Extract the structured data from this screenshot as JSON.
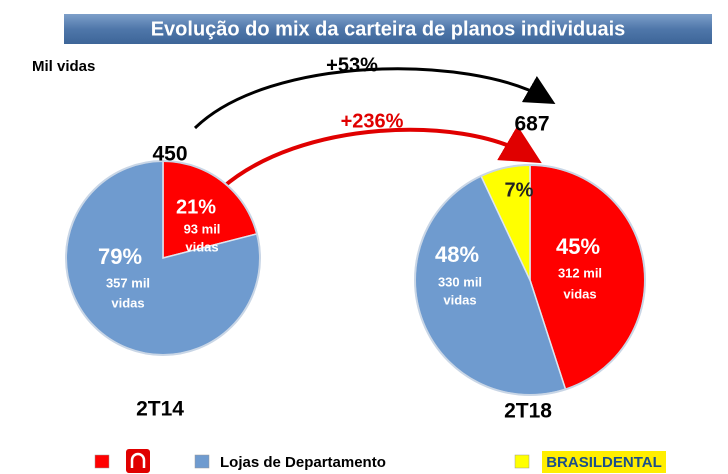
{
  "title": "Evolução do mix da carteira de planos individuais",
  "unit_label": "Mil vidas",
  "annotations": [
    "+53%",
    "+236%"
  ],
  "legend": [
    {
      "name": null,
      "color": "#ff0000"
    },
    {
      "name": "Lojas de Departamento",
      "color": "#6f9bcf"
    },
    {
      "name": "BRASILDENTAL",
      "color": "#ffff00"
    }
  ],
  "chart_data": [
    {
      "type": "pie",
      "title": "2T14",
      "total": 450,
      "categories": [
        null,
        "Lojas de Departamento"
      ],
      "values": [
        21,
        79
      ],
      "value_labels": [
        "21%",
        "79%"
      ],
      "details": [
        [
          "93 mil",
          "vidas"
        ],
        [
          "357 mil",
          "vidas"
        ]
      ],
      "colors": [
        "#ff0000",
        "#6f9bcf"
      ]
    },
    {
      "type": "pie",
      "title": "2T18",
      "total": 687,
      "categories": [
        null,
        "Lojas de Departamento",
        "BRASILDENTAL"
      ],
      "values": [
        45,
        48,
        7
      ],
      "value_labels": [
        "45%",
        "48%",
        "7%"
      ],
      "details": [
        [
          "312 mil",
          "vidas"
        ],
        [
          "330 mil",
          "vidas"
        ],
        []
      ],
      "colors": [
        "#ff0000",
        "#6f9bcf",
        "#ffff00"
      ]
    }
  ]
}
